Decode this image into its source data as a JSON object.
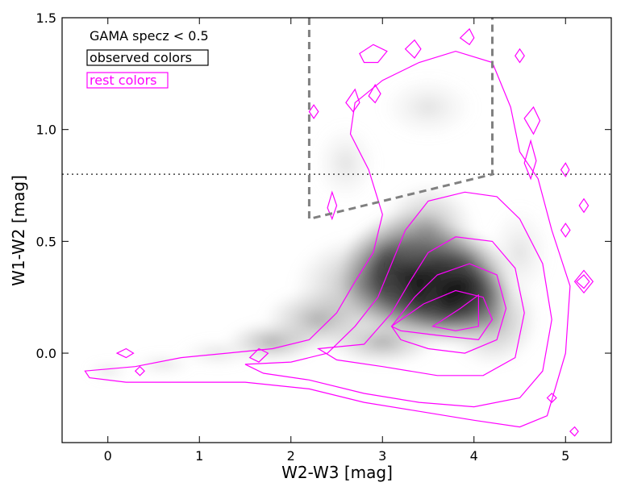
{
  "chart_data": {
    "type": "scatter",
    "xlabel": "W2-W3 [mag]",
    "ylabel": "W1-W2 [mag]",
    "xlim": [
      -0.5,
      5.5
    ],
    "ylim": [
      -0.4,
      1.5
    ],
    "x_ticks": [
      0,
      1,
      2,
      3,
      4,
      5
    ],
    "y_ticks": [
      0.0,
      0.5,
      1.0,
      1.5
    ],
    "x_tick_labels": [
      "0",
      "1",
      "2",
      "3",
      "4",
      "5"
    ],
    "y_tick_labels": [
      "0.0",
      "0.5",
      "1.0",
      "1.5"
    ],
    "grid": false,
    "legend_position": "top-left",
    "legend": {
      "title": "GAMA specz < 0.5",
      "entries": [
        {
          "label": "observed colors",
          "style": "grayscale density",
          "color": "#000000"
        },
        {
          "label": "rest colors",
          "style": "contours",
          "color": "#ff00ff"
        }
      ]
    },
    "colors": {
      "contour": "#ff00ff",
      "density": "#000000",
      "box": "#808080",
      "reference_line": "#444444"
    },
    "reference_line": {
      "y": 0.8,
      "style": "dotted"
    },
    "selection_box": {
      "style": "dashed",
      "vertices": [
        [
          2.2,
          1.5
        ],
        [
          2.2,
          0.6
        ],
        [
          4.2,
          0.8
        ],
        [
          4.2,
          1.5
        ]
      ]
    },
    "density_peak": {
      "x": 3.8,
      "y": 0.25
    },
    "contour_levels": [
      {
        "level": 1,
        "points": [
          [
            -0.25,
            -0.08
          ],
          [
            0.3,
            -0.06
          ],
          [
            0.8,
            -0.02
          ],
          [
            1.3,
            0.0
          ],
          [
            1.8,
            0.02
          ],
          [
            2.2,
            0.06
          ],
          [
            2.5,
            0.18
          ],
          [
            2.7,
            0.32
          ],
          [
            2.9,
            0.45
          ],
          [
            3.0,
            0.62
          ],
          [
            2.85,
            0.82
          ],
          [
            2.65,
            0.98
          ],
          [
            2.7,
            1.12
          ],
          [
            3.0,
            1.22
          ],
          [
            3.4,
            1.3
          ],
          [
            3.8,
            1.35
          ],
          [
            4.2,
            1.3
          ],
          [
            4.4,
            1.1
          ],
          [
            4.5,
            0.9
          ],
          [
            4.7,
            0.78
          ],
          [
            4.85,
            0.55
          ],
          [
            5.05,
            0.3
          ],
          [
            5.0,
            0.0
          ],
          [
            4.8,
            -0.28
          ],
          [
            4.5,
            -0.33
          ],
          [
            4.0,
            -0.3
          ],
          [
            3.4,
            -0.26
          ],
          [
            2.8,
            -0.22
          ],
          [
            2.2,
            -0.16
          ],
          [
            1.5,
            -0.13
          ],
          [
            0.8,
            -0.13
          ],
          [
            0.2,
            -0.13
          ],
          [
            -0.2,
            -0.11
          ]
        ]
      },
      {
        "level": 2,
        "points": [
          [
            1.5,
            -0.05
          ],
          [
            2.0,
            -0.04
          ],
          [
            2.4,
            0.0
          ],
          [
            2.7,
            0.12
          ],
          [
            2.95,
            0.25
          ],
          [
            3.1,
            0.4
          ],
          [
            3.25,
            0.55
          ],
          [
            3.5,
            0.68
          ],
          [
            3.9,
            0.72
          ],
          [
            4.25,
            0.7
          ],
          [
            4.5,
            0.6
          ],
          [
            4.75,
            0.4
          ],
          [
            4.85,
            0.15
          ],
          [
            4.75,
            -0.08
          ],
          [
            4.5,
            -0.2
          ],
          [
            4.0,
            -0.24
          ],
          [
            3.4,
            -0.22
          ],
          [
            2.8,
            -0.18
          ],
          [
            2.2,
            -0.12
          ],
          [
            1.7,
            -0.09
          ]
        ]
      },
      {
        "level": 3,
        "points": [
          [
            2.3,
            0.02
          ],
          [
            2.8,
            0.04
          ],
          [
            3.1,
            0.18
          ],
          [
            3.3,
            0.32
          ],
          [
            3.5,
            0.45
          ],
          [
            3.8,
            0.52
          ],
          [
            4.2,
            0.5
          ],
          [
            4.45,
            0.38
          ],
          [
            4.55,
            0.18
          ],
          [
            4.45,
            -0.02
          ],
          [
            4.1,
            -0.1
          ],
          [
            3.6,
            -0.1
          ],
          [
            3.0,
            -0.06
          ],
          [
            2.5,
            -0.03
          ]
        ]
      },
      {
        "level": 4,
        "points": [
          [
            3.1,
            0.12
          ],
          [
            3.35,
            0.25
          ],
          [
            3.6,
            0.35
          ],
          [
            3.95,
            0.4
          ],
          [
            4.25,
            0.35
          ],
          [
            4.35,
            0.2
          ],
          [
            4.25,
            0.06
          ],
          [
            3.9,
            0.0
          ],
          [
            3.5,
            0.02
          ],
          [
            3.2,
            0.06
          ]
        ]
      },
      {
        "level": 5,
        "points": [
          [
            3.1,
            0.12
          ],
          [
            3.45,
            0.22
          ],
          [
            3.8,
            0.28
          ],
          [
            4.1,
            0.25
          ],
          [
            4.2,
            0.15
          ],
          [
            4.05,
            0.06
          ],
          [
            3.6,
            0.08
          ],
          [
            3.2,
            0.1
          ]
        ]
      },
      {
        "level": 6,
        "points": [
          [
            3.55,
            0.12
          ],
          [
            3.85,
            0.2
          ],
          [
            4.05,
            0.26
          ],
          [
            4.05,
            0.12
          ],
          [
            3.8,
            0.1
          ]
        ]
      }
    ],
    "contour_islands": [
      {
        "points": [
          [
            2.75,
            1.34
          ],
          [
            2.9,
            1.38
          ],
          [
            3.05,
            1.35
          ],
          [
            2.95,
            1.3
          ],
          [
            2.8,
            1.3
          ]
        ]
      },
      {
        "points": [
          [
            3.25,
            1.36
          ],
          [
            3.35,
            1.4
          ],
          [
            3.42,
            1.36
          ],
          [
            3.35,
            1.32
          ]
        ]
      },
      {
        "points": [
          [
            3.85,
            1.41
          ],
          [
            3.95,
            1.45
          ],
          [
            4.0,
            1.41
          ],
          [
            3.95,
            1.38
          ]
        ]
      },
      {
        "points": [
          [
            2.85,
            1.15
          ],
          [
            2.92,
            1.2
          ],
          [
            2.98,
            1.16
          ],
          [
            2.92,
            1.12
          ]
        ]
      },
      {
        "points": [
          [
            4.45,
            1.33
          ],
          [
            4.5,
            1.36
          ],
          [
            4.55,
            1.33
          ],
          [
            4.5,
            1.3
          ]
        ]
      },
      {
        "points": [
          [
            4.55,
            1.05
          ],
          [
            4.65,
            1.1
          ],
          [
            4.72,
            1.04
          ],
          [
            4.65,
            0.98
          ]
        ]
      },
      {
        "points": [
          [
            4.55,
            0.85
          ],
          [
            4.62,
            0.95
          ],
          [
            4.68,
            0.86
          ],
          [
            4.62,
            0.78
          ]
        ]
      },
      {
        "points": [
          [
            1.55,
            -0.02
          ],
          [
            1.65,
            0.02
          ],
          [
            1.75,
            0.0
          ],
          [
            1.65,
            -0.04
          ]
        ]
      },
      {
        "points": [
          [
            0.1,
            0.0
          ],
          [
            0.2,
            0.02
          ],
          [
            0.28,
            0.0
          ],
          [
            0.2,
            -0.02
          ]
        ]
      },
      {
        "points": [
          [
            0.3,
            -0.08
          ],
          [
            0.35,
            -0.06
          ],
          [
            0.4,
            -0.08
          ],
          [
            0.35,
            -0.1
          ]
        ]
      },
      {
        "points": [
          [
            5.1,
            0.32
          ],
          [
            5.2,
            0.37
          ],
          [
            5.3,
            0.32
          ],
          [
            5.2,
            0.27
          ]
        ]
      },
      {
        "points": [
          [
            5.12,
            0.32
          ],
          [
            5.2,
            0.35
          ],
          [
            5.26,
            0.32
          ],
          [
            5.2,
            0.29
          ]
        ]
      },
      {
        "points": [
          [
            4.95,
            0.55
          ],
          [
            5.0,
            0.58
          ],
          [
            5.05,
            0.55
          ],
          [
            5.0,
            0.52
          ]
        ]
      },
      {
        "points": [
          [
            5.15,
            0.66
          ],
          [
            5.2,
            0.69
          ],
          [
            5.25,
            0.66
          ],
          [
            5.2,
            0.63
          ]
        ]
      },
      {
        "points": [
          [
            4.95,
            0.82
          ],
          [
            5.0,
            0.85
          ],
          [
            5.04,
            0.82
          ],
          [
            5.0,
            0.79
          ]
        ]
      },
      {
        "points": [
          [
            4.8,
            -0.2
          ],
          [
            4.85,
            -0.18
          ],
          [
            4.9,
            -0.2
          ],
          [
            4.85,
            -0.22
          ]
        ]
      },
      {
        "points": [
          [
            5.05,
            -0.35
          ],
          [
            5.1,
            -0.33
          ],
          [
            5.14,
            -0.35
          ],
          [
            5.1,
            -0.37
          ]
        ]
      },
      {
        "points": [
          [
            2.2,
            1.08
          ],
          [
            2.25,
            1.11
          ],
          [
            2.3,
            1.08
          ],
          [
            2.25,
            1.05
          ]
        ]
      },
      {
        "points": [
          [
            2.4,
            0.65
          ],
          [
            2.45,
            0.72
          ],
          [
            2.5,
            0.66
          ],
          [
            2.45,
            0.6
          ]
        ]
      },
      {
        "points": [
          [
            2.6,
            1.12
          ],
          [
            2.7,
            1.18
          ],
          [
            2.75,
            1.12
          ],
          [
            2.68,
            1.08
          ]
        ]
      }
    ]
  }
}
